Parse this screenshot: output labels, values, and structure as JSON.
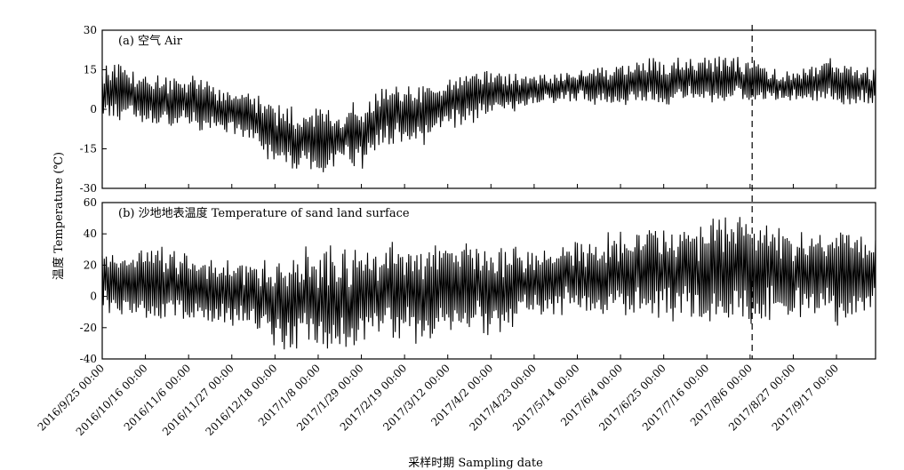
{
  "figure": {
    "ylabel": "温度 Temperature (℃)",
    "xlabel": "采样时期 Sampling date"
  },
  "chart_data": [
    {
      "type": "line",
      "panel_label": "(a)  空气 Air",
      "ylabel": "温度 Temperature (℃)",
      "xlabel": "采样时期 Sampling date",
      "ylim": [
        -30,
        30
      ],
      "yticks": [
        30,
        15,
        0,
        -15,
        -30
      ],
      "x_range": [
        "2016/9/25 00:00",
        "2017/10/6 00:00"
      ],
      "grid": false,
      "vertical_marker": "2017/8/7 00:00",
      "series": [
        {
          "color": "#000000",
          "x": [
            "2016/9/25",
            "2016/10/5",
            "2016/10/16",
            "2016/10/26",
            "2016/11/6",
            "2016/11/16",
            "2016/11/27",
            "2016/12/7",
            "2016/12/18",
            "2016/12/28",
            "2017/1/8",
            "2017/1/18",
            "2017/1/29",
            "2017/2/8",
            "2017/2/19",
            "2017/3/1",
            "2017/3/12",
            "2017/3/22",
            "2017/4/2",
            "2017/4/12",
            "2017/4/23",
            "2017/5/3",
            "2017/5/14",
            "2017/5/24",
            "2017/6/4",
            "2017/6/14",
            "2017/6/25",
            "2017/7/5",
            "2017/7/16",
            "2017/7/26",
            "2017/8/6",
            "2017/8/16",
            "2017/8/27",
            "2017/9/6",
            "2017/9/17",
            "2017/9/27",
            "2017/10/6"
          ],
          "mean": [
            8,
            6,
            5,
            3,
            2,
            1,
            -1,
            -3,
            -10,
            -12,
            -12,
            -10,
            -10,
            -3,
            -2,
            -2,
            3,
            4,
            6,
            6,
            7,
            8,
            9,
            9,
            9,
            10,
            10,
            11,
            11,
            11,
            11,
            9,
            9,
            10,
            11,
            9,
            9
          ],
          "amplitude": [
            7,
            8,
            8,
            8,
            8,
            8,
            7,
            8,
            9,
            10,
            10,
            10,
            10,
            9,
            8,
            9,
            8,
            8,
            7,
            6,
            5,
            5,
            5,
            6,
            6,
            7,
            7,
            7,
            7,
            7,
            7,
            5,
            5,
            6,
            7,
            6,
            6
          ]
        }
      ]
    },
    {
      "type": "line",
      "panel_label": "(b)  沙地地表温度 Temperature of sand land surface",
      "ylabel": "温度 Temperature (℃)",
      "xlabel": "采样时期 Sampling date",
      "ylim": [
        -40,
        60
      ],
      "yticks": [
        60,
        40,
        20,
        0,
        -20,
        -40
      ],
      "x_range": [
        "2016/9/25 00:00",
        "2017/10/6 00:00"
      ],
      "grid": false,
      "vertical_marker": "2017/8/7 00:00",
      "series": [
        {
          "color": "#000000",
          "x": [
            "2016/9/25",
            "2016/10/5",
            "2016/10/16",
            "2016/10/26",
            "2016/11/6",
            "2016/11/16",
            "2016/11/27",
            "2016/12/7",
            "2016/12/18",
            "2016/12/28",
            "2017/1/8",
            "2017/1/18",
            "2017/1/29",
            "2017/2/8",
            "2017/2/19",
            "2017/3/1",
            "2017/3/12",
            "2017/3/22",
            "2017/4/2",
            "2017/4/12",
            "2017/4/23",
            "2017/5/3",
            "2017/5/14",
            "2017/5/24",
            "2017/6/4",
            "2017/6/14",
            "2017/6/25",
            "2017/7/5",
            "2017/7/16",
            "2017/7/26",
            "2017/8/6",
            "2017/8/16",
            "2017/8/27",
            "2017/9/6",
            "2017/9/17",
            "2017/9/27",
            "2017/10/6"
          ],
          "mean": [
            8,
            10,
            10,
            7,
            5,
            4,
            2,
            0,
            -5,
            -4,
            -2,
            -3,
            -2,
            2,
            3,
            2,
            3,
            4,
            5,
            6,
            8,
            10,
            12,
            13,
            14,
            15,
            15,
            16,
            16,
            17,
            17,
            14,
            13,
            14,
            15,
            12,
            12
          ],
          "amplitude": [
            14,
            18,
            20,
            18,
            18,
            16,
            16,
            16,
            22,
            25,
            26,
            27,
            27,
            25,
            25,
            25,
            24,
            23,
            22,
            20,
            18,
            18,
            18,
            20,
            22,
            23,
            25,
            24,
            26,
            27,
            28,
            24,
            22,
            24,
            26,
            22,
            22
          ]
        }
      ]
    }
  ],
  "x_tick_labels": [
    "2016/9/25 00:00",
    "2016/10/16 00:00",
    "2016/11/6 00:00",
    "2016/11/27 00:00",
    "2016/12/18 00:00",
    "2017/1/8 00:00",
    "2017/1/29 00:00",
    "2017/2/19 00:00",
    "2017/3/12 00:00",
    "2017/4/2 00:00",
    "2017/4/23 00:00",
    "2017/5/14 00:00",
    "2017/6/4 00:00",
    "2017/6/25 00:00",
    "2017/7/16 00:00",
    "2017/8/6 00:00",
    "2017/8/27 00:00",
    "2017/9/17 00:00"
  ]
}
